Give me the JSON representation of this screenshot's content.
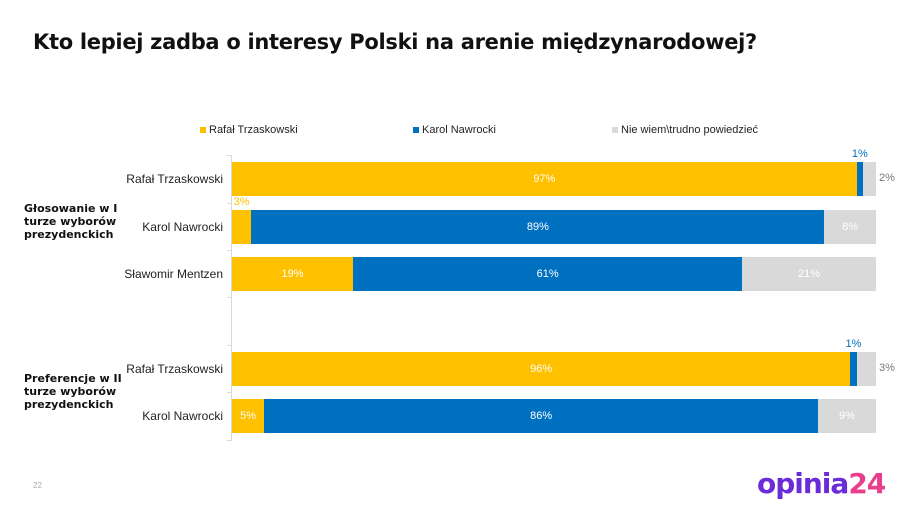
{
  "title": "Kto lepiej zadba o interesy Polski na arenie międzynarodowej?",
  "page_number": "22",
  "logo": {
    "part1": "opinia",
    "part2": "24",
    "color1": "#6a2bd9",
    "color2": "#e83e8c"
  },
  "groups": [
    "Głosowanie w I turze wyborów prezydenckich",
    "Preferencje w II turze wyborów prezydenckich"
  ],
  "chart_data": {
    "type": "bar",
    "orientation": "horizontal-stacked-100",
    "title": "Kto lepiej zadba o interesy Polski na arenie międzynarodowej?",
    "categories": [
      "Rafał Trzaskowski",
      "Karol Nawrocki",
      "Sławomir Mentzen",
      "Rafał Trzaskowski",
      "Karol Nawrocki"
    ],
    "category_groups": [
      0,
      0,
      0,
      1,
      1
    ],
    "legend_position": "top",
    "series": [
      {
        "name": "Rafał Trzaskowski",
        "color": "#ffc000",
        "values": [
          97,
          3,
          19,
          96,
          5
        ]
      },
      {
        "name": "Karol Nawrocki",
        "color": "#0070c0",
        "values": [
          1,
          89,
          61,
          1,
          86
        ]
      },
      {
        "name": "Nie wiem\\trudno powiedzieć",
        "color": "#d9d9d9",
        "values": [
          2,
          8,
          21,
          3,
          9
        ]
      }
    ],
    "value_suffix": "%"
  }
}
